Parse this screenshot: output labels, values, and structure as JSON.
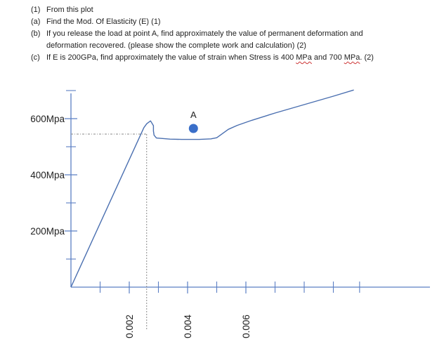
{
  "questions": {
    "q1": {
      "num": "(1)",
      "text": "From this plot"
    },
    "qa": {
      "num": "(a)",
      "text": "Find the Mod. Of Elasticity (E) (1)"
    },
    "qb": {
      "num": "(b)",
      "text": "If you release the load at point A, find approximately the value of permanent deformation and",
      "cont": "deformation recovered. (please show the complete work and calculation) (2)"
    },
    "qc": {
      "num": "(c)",
      "text_pre": "If E is 200GPa, find approximately the value of strain when Stress is 400 ",
      "u1": "MPa",
      "mid": " and 700 ",
      "u2": "MPa",
      "post": ". (2)"
    }
  },
  "chart_data": {
    "type": "line",
    "title": "",
    "xlabel": "",
    "ylabel": "",
    "xlim": [
      0,
      0.0098
    ],
    "ylim": [
      0,
      715
    ],
    "y_ticks": [
      {
        "value": 200,
        "label": "200Mpa"
      },
      {
        "value": 400,
        "label": "400Mpa"
      },
      {
        "value": 600,
        "label": "600Mpa"
      }
    ],
    "y_minor_ticks": [
      100,
      300,
      500,
      700
    ],
    "x_ticks": [
      {
        "value": 0.002,
        "label": "0.002"
      },
      {
        "value": 0.004,
        "label": "0.004"
      },
      {
        "value": 0.006,
        "label": "0.006"
      }
    ],
    "x_minor_ticks": [
      0.001,
      0.003,
      0.005,
      0.007,
      0.008,
      0.009,
      0.0099
    ],
    "yield_point": {
      "x": 0.0025,
      "y": 570
    },
    "point_A": {
      "label": "A",
      "x": 0.0042,
      "y": 530
    },
    "series": [
      {
        "values": [
          [
            0.0,
            0.0
          ],
          [
            0.0025,
            568
          ],
          [
            0.0026,
            582
          ],
          [
            0.00273,
            592
          ],
          [
            0.00283,
            575
          ],
          [
            0.00283,
            556
          ],
          [
            0.00285,
            541
          ],
          [
            0.00293,
            531
          ],
          [
            0.0034,
            527
          ],
          [
            0.0038,
            526
          ],
          [
            0.0044,
            526
          ],
          [
            0.0048,
            528
          ],
          [
            0.005,
            532
          ],
          [
            0.0052,
            547
          ],
          [
            0.0054,
            562
          ],
          [
            0.0057,
            576
          ],
          [
            0.0062,
            594
          ],
          [
            0.007,
            620
          ],
          [
            0.008,
            650
          ],
          [
            0.009,
            680
          ],
          [
            0.0097,
            702
          ]
        ]
      }
    ],
    "colors": {
      "curve": "#4a6fb0",
      "axis": "#5b7fc4",
      "point": "#3a6fc9",
      "guide": "#8a8a8a"
    }
  }
}
